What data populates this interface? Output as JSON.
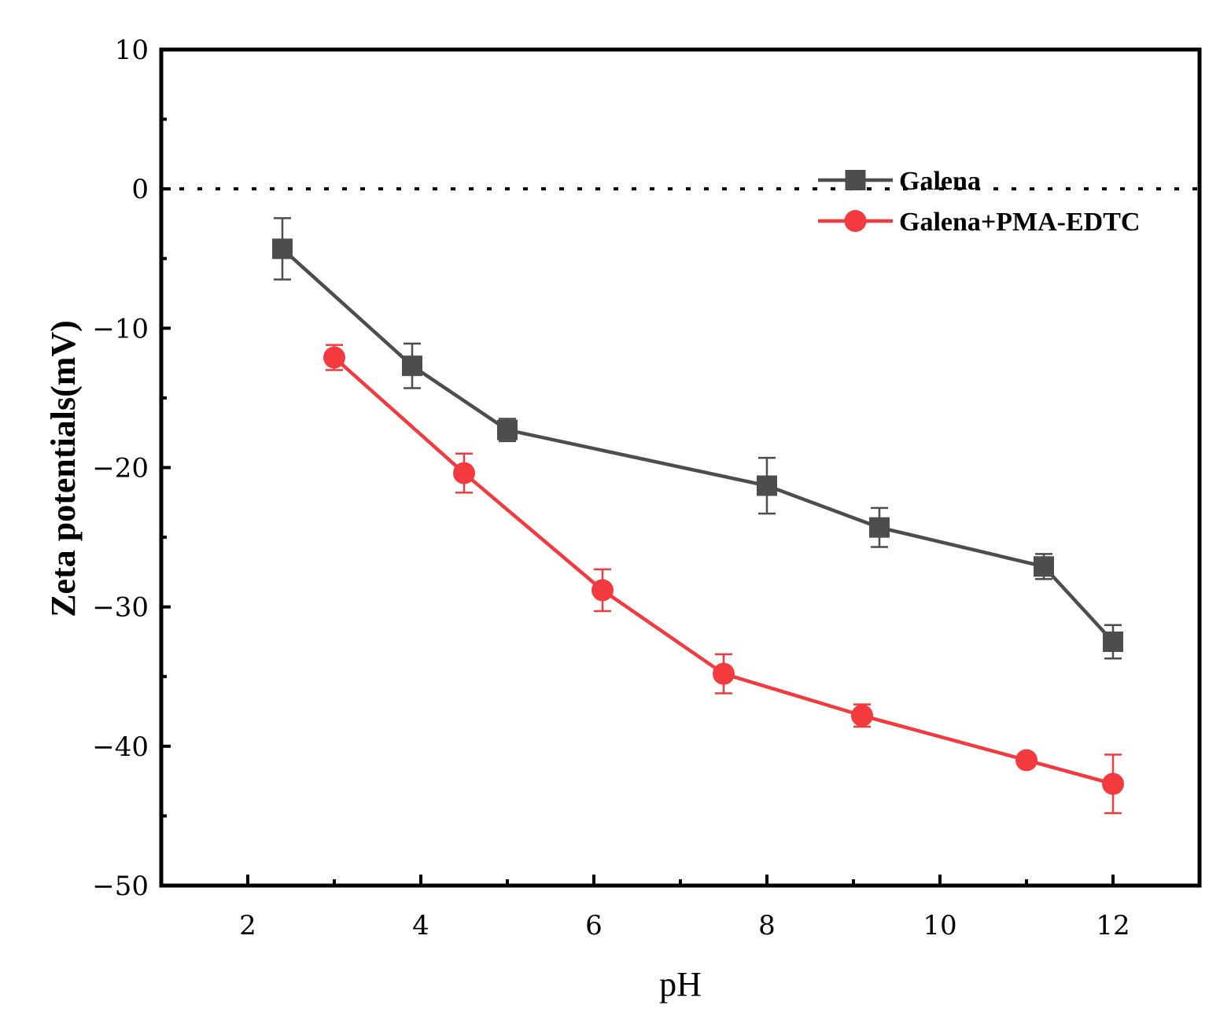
{
  "chart_data": {
    "type": "line",
    "xlabel": "pH",
    "ylabel": "Zeta potentials(mV)",
    "xlim": [
      1,
      13
    ],
    "ylim": [
      -50,
      10
    ],
    "xticks": [
      2,
      4,
      6,
      8,
      10,
      12
    ],
    "yticks": [
      -50,
      -40,
      -30,
      -20,
      -10,
      0,
      10
    ],
    "reference_line": {
      "y": 0,
      "style": "dotted"
    },
    "legend_position": "top-right",
    "series": [
      {
        "name": "Galena",
        "color": "#4d4d4d",
        "marker": "square",
        "x": [
          2.4,
          3.9,
          5.0,
          8.0,
          9.3,
          11.2,
          12.0
        ],
        "y": [
          -4.3,
          -12.7,
          -17.3,
          -21.3,
          -24.3,
          -27.1,
          -32.5
        ],
        "err": [
          2.2,
          1.6,
          0.8,
          2.0,
          1.4,
          0.9,
          1.2
        ]
      },
      {
        "name": "Galena+PMA-EDTC",
        "color": "#f23a3f",
        "marker": "circle",
        "x": [
          3.0,
          4.5,
          6.1,
          7.5,
          9.1,
          11.0,
          12.0
        ],
        "y": [
          -12.1,
          -20.4,
          -28.8,
          -34.8,
          -37.8,
          -41.0,
          -42.7
        ],
        "err": [
          0.9,
          1.4,
          1.5,
          1.4,
          0.8,
          0.4,
          2.1
        ]
      }
    ]
  }
}
